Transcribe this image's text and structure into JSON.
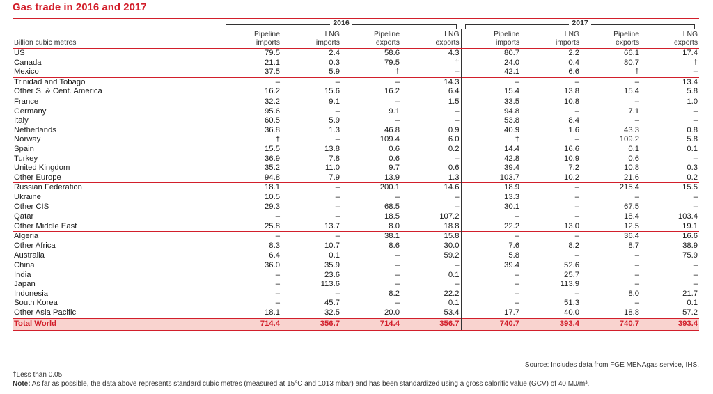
{
  "title": "Gas trade in 2016 and 2017",
  "units_label": "Billion cubic metres",
  "years": [
    "2016",
    "2017"
  ],
  "columns": [
    [
      "Pipeline",
      "imports"
    ],
    [
      "LNG",
      "imports"
    ],
    [
      "Pipeline",
      "exports"
    ],
    [
      "LNG",
      "exports"
    ],
    [
      "Pipeline",
      "imports"
    ],
    [
      "LNG",
      "imports"
    ],
    [
      "Pipeline",
      "exports"
    ],
    [
      "LNG",
      "exports"
    ]
  ],
  "groups": [
    [
      [
        "US",
        "79.5",
        "2.4",
        "58.6",
        "4.3",
        "80.7",
        "2.2",
        "66.1",
        "17.4"
      ],
      [
        "Canada",
        "21.1",
        "0.3",
        "79.5",
        "†",
        "24.0",
        "0.4",
        "80.7",
        "†"
      ],
      [
        "Mexico",
        "37.5",
        "5.9",
        "†",
        "–",
        "42.1",
        "6.6",
        "†",
        "–"
      ]
    ],
    [
      [
        "Trinidad and Tobago",
        "–",
        "–",
        "–",
        "14.3",
        "–",
        "–",
        "–",
        "13.4"
      ],
      [
        "Other S. & Cent. America",
        "16.2",
        "15.6",
        "16.2",
        "6.4",
        "15.4",
        "13.8",
        "15.4",
        "5.8"
      ]
    ],
    [
      [
        "France",
        "32.2",
        "9.1",
        "–",
        "1.5",
        "33.5",
        "10.8",
        "–",
        "1.0"
      ],
      [
        "Germany",
        "95.6",
        "–",
        "9.1",
        "–",
        "94.8",
        "–",
        "7.1",
        "–"
      ],
      [
        "Italy",
        "60.5",
        "5.9",
        "–",
        "–",
        "53.8",
        "8.4",
        "–",
        "–"
      ],
      [
        "Netherlands",
        "36.8",
        "1.3",
        "46.8",
        "0.9",
        "40.9",
        "1.6",
        "43.3",
        "0.8"
      ],
      [
        "Norway",
        "†",
        "–",
        "109.4",
        "6.0",
        "†",
        "–",
        "109.2",
        "5.8"
      ],
      [
        "Spain",
        "15.5",
        "13.8",
        "0.6",
        "0.2",
        "14.4",
        "16.6",
        "0.1",
        "0.1"
      ],
      [
        "Turkey",
        "36.9",
        "7.8",
        "0.6",
        "–",
        "42.8",
        "10.9",
        "0.6",
        "–"
      ],
      [
        "United Kingdom",
        "35.2",
        "11.0",
        "9.7",
        "0.6",
        "39.4",
        "7.2",
        "10.8",
        "0.3"
      ],
      [
        "Other Europe",
        "94.8",
        "7.9",
        "13.9",
        "1.3",
        "103.7",
        "10.2",
        "21.6",
        "0.2"
      ]
    ],
    [
      [
        "Russian Federation",
        "18.1",
        "–",
        "200.1",
        "14.6",
        "18.9",
        "–",
        "215.4",
        "15.5"
      ],
      [
        "Ukraine",
        "10.5",
        "–",
        "–",
        "–",
        "13.3",
        "–",
        "–",
        "–"
      ],
      [
        "Other CIS",
        "29.3",
        "–",
        "68.5",
        "–",
        "30.1",
        "–",
        "67.5",
        "–"
      ]
    ],
    [
      [
        "Qatar",
        "–",
        "–",
        "18.5",
        "107.2",
        "–",
        "–",
        "18.4",
        "103.4"
      ],
      [
        "Other Middle East",
        "25.8",
        "13.7",
        "8.0",
        "18.8",
        "22.2",
        "13.0",
        "12.5",
        "19.1"
      ]
    ],
    [
      [
        "Algeria",
        "–",
        "–",
        "38.1",
        "15.8",
        "–",
        "–",
        "36.4",
        "16.6"
      ],
      [
        "Other Africa",
        "8.3",
        "10.7",
        "8.6",
        "30.0",
        "7.6",
        "8.2",
        "8.7",
        "38.9"
      ]
    ],
    [
      [
        "Australia",
        "6.4",
        "0.1",
        "–",
        "59.2",
        "5.8",
        "–",
        "–",
        "75.9"
      ],
      [
        "China",
        "36.0",
        "35.9",
        "–",
        "–",
        "39.4",
        "52.6",
        "–",
        "–"
      ],
      [
        "India",
        "–",
        "23.6",
        "–",
        "0.1",
        "–",
        "25.7",
        "–",
        "–"
      ],
      [
        "Japan",
        "–",
        "113.6",
        "–",
        "–",
        "–",
        "113.9",
        "–",
        "–"
      ],
      [
        "Indonesia",
        "–",
        "–",
        "8.2",
        "22.2",
        "–",
        "–",
        "8.0",
        "21.7"
      ],
      [
        "South Korea",
        "–",
        "45.7",
        "–",
        "0.1",
        "–",
        "51.3",
        "–",
        "0.1"
      ],
      [
        "Other Asia Pacific",
        "18.1",
        "32.5",
        "20.0",
        "53.4",
        "17.7",
        "40.0",
        "18.8",
        "57.2"
      ]
    ]
  ],
  "total": [
    "Total World",
    "714.4",
    "356.7",
    "714.4",
    "356.7",
    "740.7",
    "393.4",
    "740.7",
    "393.4"
  ],
  "source": "Source: Includes data from FGE MENAgas service, IHS.",
  "footnote": "†Less than 0.05.",
  "note_label": "Note:",
  "note_text": " As far as possible, the data above represents standard cubic metres (measured at 15°C and 1013 mbar) and has been standardized using a gross calorific value (GCV) of 40 MJ/m³."
}
